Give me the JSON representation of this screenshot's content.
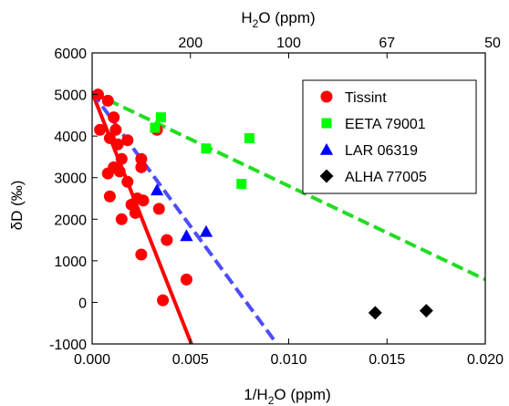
{
  "chart_data": {
    "type": "scatter",
    "xlabel_prefix": "1/H",
    "xlabel_sub": "2",
    "xlabel_suffix": "O (ppm)",
    "ylabel": "δD (‰)",
    "top_label_prefix": "H",
    "top_label_sub": "2",
    "top_label_suffix": "O (ppm)",
    "xlim": [
      0.0,
      0.02
    ],
    "ylim": [
      -1000,
      6000
    ],
    "x_ticks": [
      0.0,
      0.005,
      0.01,
      0.015,
      0.02
    ],
    "x_tick_labels": [
      "0.000",
      "0.005",
      "0.010",
      "0.015",
      "0.020"
    ],
    "y_ticks": [
      -1000,
      0,
      1000,
      2000,
      3000,
      4000,
      5000,
      6000
    ],
    "y_tick_labels": [
      "-1000",
      "0",
      "1000",
      "2000",
      "3000",
      "4000",
      "5000",
      "6000"
    ],
    "top_ticks": [
      0.005,
      0.01,
      0.015,
      0.02
    ],
    "top_tick_labels": [
      "200",
      "100",
      "67",
      "50"
    ],
    "legend_position": "top-right",
    "series": [
      {
        "name": "Tissint",
        "marker": "circle",
        "color": "#ff0000",
        "points": [
          [
            0.0003,
            5000
          ],
          [
            0.0008,
            4850
          ],
          [
            0.0004,
            4150
          ],
          [
            0.0011,
            4450
          ],
          [
            0.0012,
            4150
          ],
          [
            0.0009,
            3950
          ],
          [
            0.0013,
            3800
          ],
          [
            0.0018,
            3900
          ],
          [
            0.0033,
            4150
          ],
          [
            0.0015,
            3450
          ],
          [
            0.0011,
            3250
          ],
          [
            0.0008,
            3100
          ],
          [
            0.0014,
            3150
          ],
          [
            0.0025,
            3450
          ],
          [
            0.0025,
            3250
          ],
          [
            0.0009,
            2550
          ],
          [
            0.0018,
            2900
          ],
          [
            0.0023,
            2500
          ],
          [
            0.0026,
            2450
          ],
          [
            0.002,
            2350
          ],
          [
            0.0034,
            2250
          ],
          [
            0.0022,
            2150
          ],
          [
            0.0015,
            2000
          ],
          [
            0.0038,
            1500
          ],
          [
            0.0025,
            1150
          ],
          [
            0.0048,
            550
          ],
          [
            0.0036,
            50
          ]
        ]
      },
      {
        "name": "EETA 79001",
        "marker": "square",
        "color": "#00ff00",
        "points": [
          [
            0.0035,
            4450
          ],
          [
            0.0032,
            4200
          ],
          [
            0.0058,
            3700
          ],
          [
            0.008,
            3950
          ],
          [
            0.0076,
            2850
          ]
        ]
      },
      {
        "name": "LAR 06319",
        "marker": "triangle",
        "color": "#0000ff",
        "points": [
          [
            0.0033,
            2700
          ],
          [
            0.0048,
            1600
          ],
          [
            0.0058,
            1700
          ]
        ]
      },
      {
        "name": "ALHA 77005",
        "marker": "diamond",
        "color": "#000000",
        "points": [
          [
            0.0144,
            -250
          ],
          [
            0.017,
            -200
          ]
        ]
      }
    ],
    "lines": [
      {
        "color": "#ff0000",
        "style": "solid",
        "from": [
          0.0,
          5050
        ],
        "to": [
          0.00505,
          -1000
        ]
      },
      {
        "color": "#4d4dff",
        "style": "dashed",
        "from": [
          0.0,
          5050
        ],
        "to": [
          0.0094,
          -1000
        ]
      },
      {
        "color": "#22dd22",
        "style": "dashed",
        "from": [
          0.0,
          5050
        ],
        "to": [
          0.02,
          550
        ]
      }
    ]
  }
}
